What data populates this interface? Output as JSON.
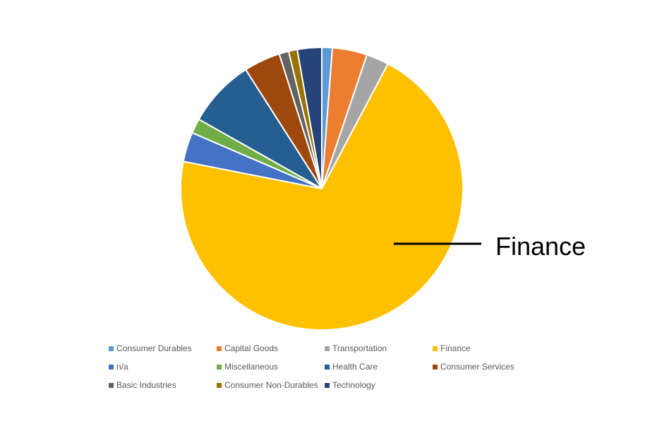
{
  "chart_data": {
    "type": "pie",
    "title": "",
    "slices": [
      {
        "label": "Consumer Durables",
        "value": 1.2,
        "color": "#5b9bd5"
      },
      {
        "label": "Capital Goods",
        "value": 4.0,
        "color": "#ed7d31"
      },
      {
        "label": "Transportation",
        "value": 2.6,
        "color": "#a5a5a5"
      },
      {
        "label": "Finance",
        "value": 70.6,
        "color": "#ffc000"
      },
      {
        "label": "n/a",
        "value": 3.4,
        "color": "#4472c4"
      },
      {
        "label": "Miscellaneous",
        "value": 1.7,
        "color": "#70ad47"
      },
      {
        "label": "Health Care",
        "value": 7.8,
        "color": "#255e91"
      },
      {
        "label": "Consumer Services",
        "value": 4.2,
        "color": "#9e480e"
      },
      {
        "label": "Basic Industries",
        "value": 1.1,
        "color": "#636363"
      },
      {
        "label": "Consumer Non-Durables",
        "value": 1.0,
        "color": "#997300"
      },
      {
        "label": "Technology",
        "value": 2.8,
        "color": "#264478"
      }
    ],
    "annotation": {
      "label": "Finance",
      "target": "Finance"
    },
    "legend_position": "bottom"
  }
}
